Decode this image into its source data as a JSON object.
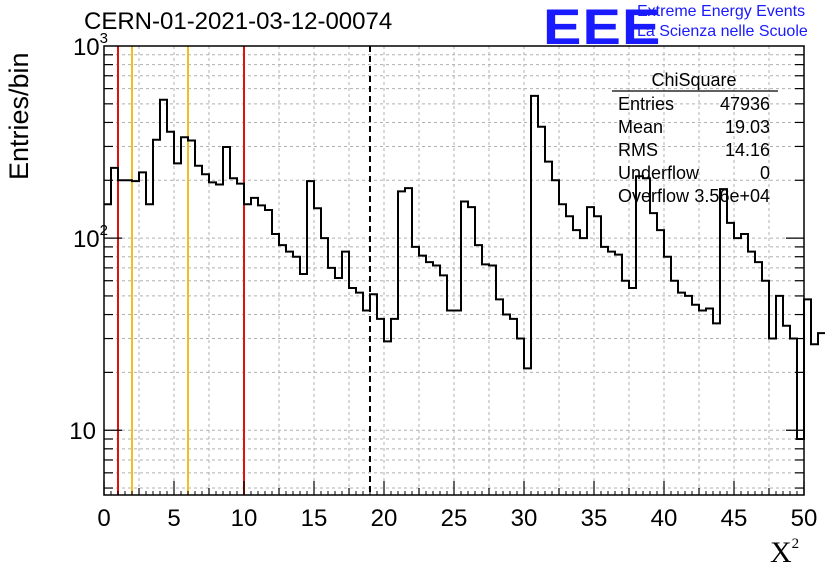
{
  "title": "CERN-01-2021-03-12-00074",
  "logo": {
    "text": "EEE",
    "line1": "Extreme Energy Events",
    "line2": "La Scienza nelle Scuole",
    "color": "#1a1aff"
  },
  "axis": {
    "ylabel": "Entries/bin",
    "xlabel": "X",
    "xlabel_sup": "2"
  },
  "stats": {
    "name": "ChiSquare",
    "rows": [
      {
        "label": "Entries",
        "value": "47936"
      },
      {
        "label": "Mean",
        "value": "19.03"
      },
      {
        "label": "RMS",
        "value": "14.16"
      },
      {
        "label": "Underflow",
        "value": "0"
      },
      {
        "label": "Overflow",
        "value": "3.56e+04"
      }
    ]
  },
  "chart_data": {
    "type": "histogram",
    "xlim": [
      0,
      50
    ],
    "ylim": [
      4.6,
      1000
    ],
    "yscale": "log",
    "grid": true,
    "bin_width": 0.5,
    "x_ticks": [
      "0",
      "5",
      "10",
      "15",
      "20",
      "25",
      "30",
      "35",
      "40",
      "45",
      "50"
    ],
    "y_ticks": [
      {
        "value": 10,
        "label": "10"
      },
      {
        "value": 100,
        "label": "10^2"
      },
      {
        "value": 1000,
        "label": "10^3"
      }
    ],
    "values": [
      150,
      232,
      200,
      200,
      198,
      220,
      150,
      325,
      525,
      358,
      245,
      335,
      322,
      238,
      215,
      195,
      190,
      298,
      205,
      192,
      150,
      162,
      148,
      140,
      105,
      92,
      85,
      80,
      65,
      198,
      143,
      100,
      70,
      62,
      85,
      55,
      52,
      42,
      51,
      38,
      29,
      38,
      175,
      182,
      90,
      81,
      75,
      72,
      64,
      42,
      42,
      155,
      145,
      92,
      73,
      72,
      48,
      40,
      38,
      30,
      21,
      550,
      380,
      250,
      200,
      150,
      130,
      110,
      100,
      145,
      130,
      90,
      85,
      82,
      60,
      55,
      210,
      205,
      135,
      110,
      80,
      60,
      52,
      50,
      45,
      42,
      43,
      36,
      180,
      120,
      100,
      105,
      85,
      75,
      60,
      30,
      50,
      35,
      30,
      9,
      48,
      28,
      32
    ],
    "markers": [
      {
        "x": 1,
        "color": "#dd1111",
        "style": "solid"
      },
      {
        "x": 10,
        "color": "#dd1111",
        "style": "solid"
      },
      {
        "x": 2,
        "color": "#f0c020",
        "style": "solid"
      },
      {
        "x": 6,
        "color": "#f0c020",
        "style": "solid"
      },
      {
        "x": 19,
        "color": "#000000",
        "style": "dashed"
      }
    ]
  }
}
